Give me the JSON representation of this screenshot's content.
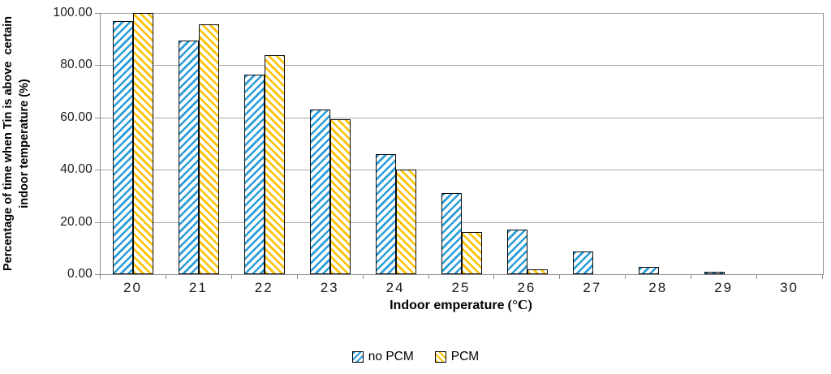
{
  "chart_data": {
    "type": "bar",
    "title": "",
    "xlabel": "Indoor emperature (°C)",
    "xlabel_parts": {
      "text": "Indoor emperature",
      "unit": "(°C)"
    },
    "ylabel": "Percentage of time when Tin is above  certain\nindoor temperature (%)",
    "categories": [
      "20",
      "21",
      "22",
      "23",
      "24",
      "25",
      "26",
      "27",
      "28",
      "29",
      "30"
    ],
    "series": [
      {
        "name": "no PCM",
        "color": "#2B9CD8",
        "hatch": "forward-diagonal",
        "values": [
          96.8,
          89.5,
          76.3,
          63.1,
          45.9,
          31.0,
          17.0,
          8.6,
          2.8,
          0.9,
          0.0
        ]
      },
      {
        "name": "PCM",
        "color": "#FFC000",
        "hatch": "backward-diagonal",
        "values": [
          100.0,
          95.8,
          84.0,
          59.4,
          40.0,
          16.3,
          1.9,
          0.0,
          0.0,
          0.0,
          0.0
        ]
      }
    ],
    "ylim": [
      0,
      100
    ],
    "yticks": [
      0,
      20,
      40,
      60,
      80,
      100
    ],
    "ytick_labels": [
      "0.00",
      "20.00",
      "40.00",
      "60.00",
      "80.00",
      "100.00"
    ],
    "grid": true,
    "legend_position": "bottom",
    "grid_color": "#A6A6A6",
    "axis_color": "#8C8C8C",
    "bar_border_color": "#0B0B0B",
    "background": "#FFFFFF"
  }
}
